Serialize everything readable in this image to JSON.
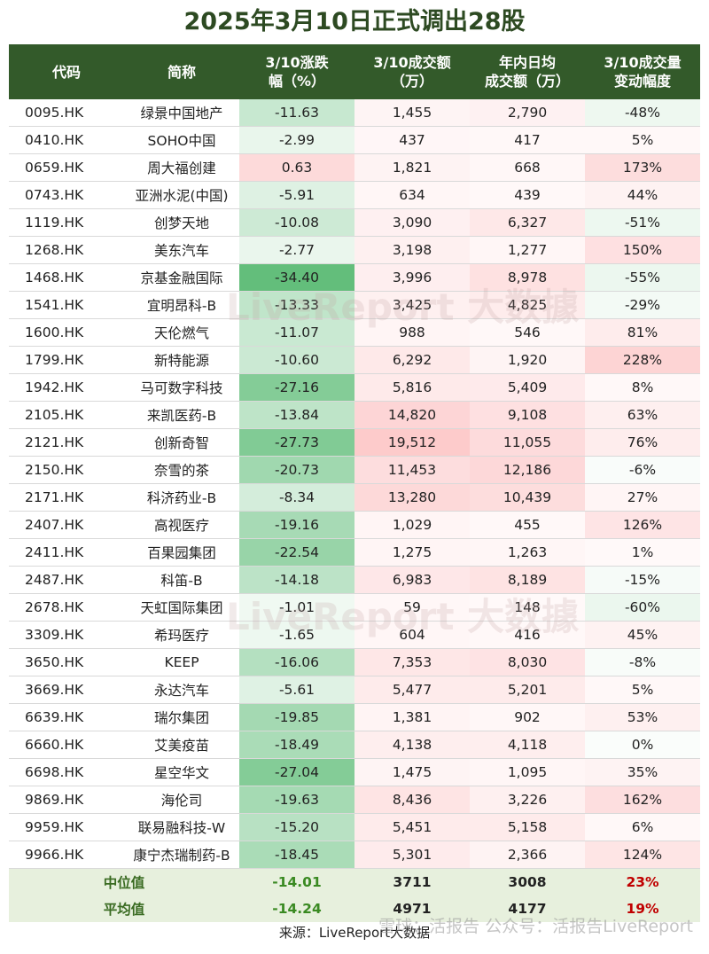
{
  "title": "2025年3月10日正式调出28股",
  "headers": {
    "code": "代码",
    "name": "简称",
    "change_l1": "3/10涨跌",
    "change_l2": "幅（%）",
    "turnover_l1": "3/10成交额",
    "turnover_l2": "（万）",
    "avg_l1": "年内日均",
    "avg_l2": "成交额（万）",
    "var_l1": "3/10成交量",
    "var_l2": "变动幅度"
  },
  "rows": [
    {
      "code": "0095.HK",
      "name": "绿景中国地产",
      "change": "-11.63",
      "turnover": "1,455",
      "avg": "2,790",
      "var": "-48%"
    },
    {
      "code": "0410.HK",
      "name": "SOHO中国",
      "change": "-2.99",
      "turnover": "437",
      "avg": "417",
      "var": "5%"
    },
    {
      "code": "0659.HK",
      "name": "周大福创建",
      "change": "0.63",
      "turnover": "1,821",
      "avg": "668",
      "var": "173%"
    },
    {
      "code": "0743.HK",
      "name": "亚洲水泥(中国)",
      "change": "-5.91",
      "turnover": "634",
      "avg": "439",
      "var": "44%"
    },
    {
      "code": "1119.HK",
      "name": "创梦天地",
      "change": "-10.08",
      "turnover": "3,090",
      "avg": "6,327",
      "var": "-51%"
    },
    {
      "code": "1268.HK",
      "name": "美东汽车",
      "change": "-2.77",
      "turnover": "3,198",
      "avg": "1,277",
      "var": "150%"
    },
    {
      "code": "1468.HK",
      "name": "京基金融国际",
      "change": "-34.40",
      "turnover": "3,996",
      "avg": "8,978",
      "var": "-55%"
    },
    {
      "code": "1541.HK",
      "name": "宜明昂科-B",
      "change": "-13.33",
      "turnover": "3,425",
      "avg": "4,825",
      "var": "-29%"
    },
    {
      "code": "1600.HK",
      "name": "天伦燃气",
      "change": "-11.07",
      "turnover": "988",
      "avg": "546",
      "var": "81%"
    },
    {
      "code": "1799.HK",
      "name": "新特能源",
      "change": "-10.60",
      "turnover": "6,292",
      "avg": "1,920",
      "var": "228%"
    },
    {
      "code": "1942.HK",
      "name": "马可数字科技",
      "change": "-27.16",
      "turnover": "5,816",
      "avg": "5,409",
      "var": "8%"
    },
    {
      "code": "2105.HK",
      "name": "来凯医药-B",
      "change": "-13.84",
      "turnover": "14,820",
      "avg": "9,108",
      "var": "63%"
    },
    {
      "code": "2121.HK",
      "name": "创新奇智",
      "change": "-27.73",
      "turnover": "19,512",
      "avg": "11,055",
      "var": "76%"
    },
    {
      "code": "2150.HK",
      "name": "奈雪的茶",
      "change": "-20.73",
      "turnover": "11,453",
      "avg": "12,186",
      "var": "-6%"
    },
    {
      "code": "2171.HK",
      "name": "科济药业-B",
      "change": "-8.34",
      "turnover": "13,280",
      "avg": "10,439",
      "var": "27%"
    },
    {
      "code": "2407.HK",
      "name": "高视医疗",
      "change": "-19.16",
      "turnover": "1,029",
      "avg": "455",
      "var": "126%"
    },
    {
      "code": "2411.HK",
      "name": "百果园集团",
      "change": "-22.54",
      "turnover": "1,275",
      "avg": "1,263",
      "var": "1%"
    },
    {
      "code": "2487.HK",
      "name": "科笛-B",
      "change": "-14.18",
      "turnover": "6,983",
      "avg": "8,189",
      "var": "-15%"
    },
    {
      "code": "2678.HK",
      "name": "天虹国际集团",
      "change": "-1.01",
      "turnover": "59",
      "avg": "148",
      "var": "-60%"
    },
    {
      "code": "3309.HK",
      "name": "希玛医疗",
      "change": "-1.65",
      "turnover": "604",
      "avg": "416",
      "var": "45%"
    },
    {
      "code": "3650.HK",
      "name": "KEEP",
      "change": "-16.06",
      "turnover": "7,353",
      "avg": "8,030",
      "var": "-8%"
    },
    {
      "code": "3669.HK",
      "name": "永达汽车",
      "change": "-5.61",
      "turnover": "5,477",
      "avg": "5,201",
      "var": "5%"
    },
    {
      "code": "6639.HK",
      "name": "瑞尔集团",
      "change": "-19.85",
      "turnover": "1,381",
      "avg": "902",
      "var": "53%"
    },
    {
      "code": "6660.HK",
      "name": "艾美疫苗",
      "change": "-18.49",
      "turnover": "4,138",
      "avg": "4,118",
      "var": "0%"
    },
    {
      "code": "6698.HK",
      "name": "星空华文",
      "change": "-27.04",
      "turnover": "1,475",
      "avg": "1,095",
      "var": "35%"
    },
    {
      "code": "9869.HK",
      "name": "海伦司",
      "change": "-19.63",
      "turnover": "8,436",
      "avg": "3,226",
      "var": "162%"
    },
    {
      "code": "9959.HK",
      "name": "联易融科技-W",
      "change": "-15.20",
      "turnover": "5,451",
      "avg": "5,158",
      "var": "6%"
    },
    {
      "code": "9966.HK",
      "name": "康宁杰瑞制药-B",
      "change": "-18.45",
      "turnover": "5,301",
      "avg": "2,366",
      "var": "124%"
    }
  ],
  "summary": [
    {
      "label": "中位值",
      "change": "-14.01",
      "turnover": "3711",
      "avg": "3008",
      "var": "23%"
    },
    {
      "label": "平均值",
      "change": "-14.24",
      "turnover": "4971",
      "avg": "4177",
      "var": "19%"
    }
  ],
  "source": "来源：LiveReport大数据",
  "watermark": "LiveReport 大数據",
  "brand": "雪球：活报告  公众号：活报告LiveReport",
  "colors": {
    "header_bg": "#335a2a",
    "title_text": "#2d4a22",
    "negative_heat": "#63be7b",
    "positive_heat": "#f8696b",
    "summary_bg": "#e7f0dd",
    "summary_red": "#c00000"
  }
}
